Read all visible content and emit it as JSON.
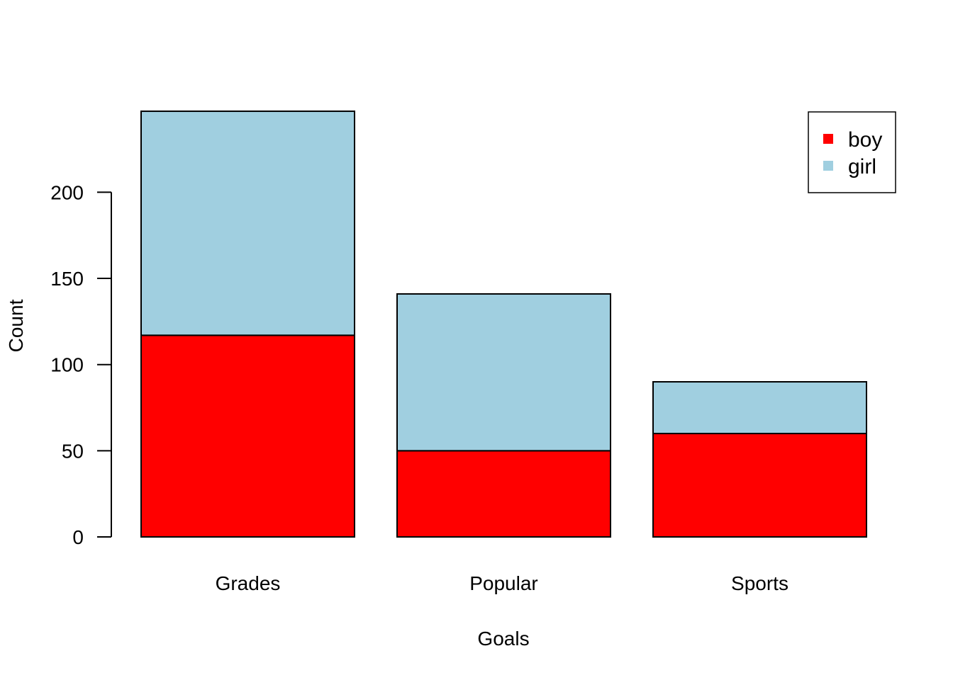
{
  "chart_data": {
    "type": "bar",
    "stacked": true,
    "categories": [
      "Grades",
      "Popular",
      "Sports"
    ],
    "series": [
      {
        "name": "boy",
        "color": "#ff0000",
        "values": [
          117,
          50,
          60
        ]
      },
      {
        "name": "girl",
        "color": "#a0cfe0",
        "values": [
          130,
          91,
          30
        ]
      }
    ],
    "xlabel": "Goals",
    "ylabel": "Count",
    "yticks": [
      0,
      50,
      100,
      150,
      200
    ],
    "ylim": [
      0,
      247
    ],
    "grid": false,
    "legend_position": "top-right"
  }
}
